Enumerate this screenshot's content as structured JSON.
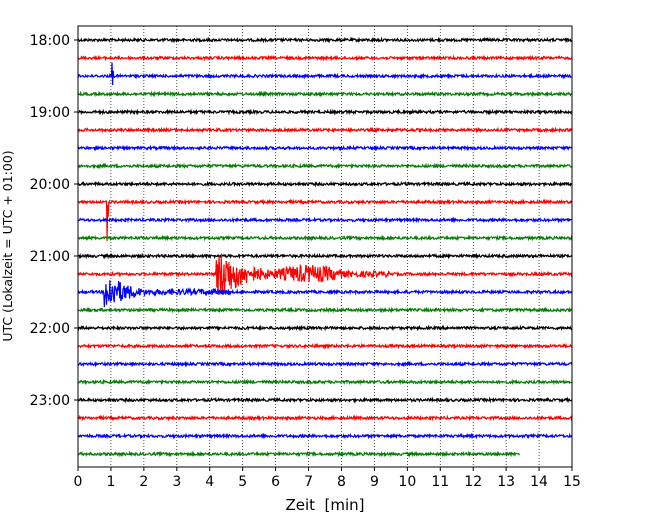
{
  "chart_data": {
    "type": "line",
    "title": "",
    "xlabel": "Zeit  [min]",
    "ylabel": "UTC (Lokalzeit = UTC + 01:00)",
    "xlim": [
      0,
      15
    ],
    "x_ticks": [
      0,
      1,
      2,
      3,
      4,
      5,
      6,
      7,
      8,
      9,
      10,
      11,
      12,
      13,
      14,
      15
    ],
    "x_tick_labels": [
      "0",
      "1",
      "2",
      "3",
      "4",
      "5",
      "6",
      "7",
      "8",
      "9",
      "10",
      "11",
      "12",
      "13",
      "14",
      "15"
    ],
    "y_range_minutes_utc": [
      "17:50",
      "24:00"
    ],
    "y_tick_labels": [
      "18:00",
      "19:00",
      "20:00",
      "21:00",
      "22:00",
      "23:00"
    ],
    "grid": "vertical dotted lines at each minute",
    "legend": "none",
    "trace_interval_minutes": 15,
    "trace_color_cycle": [
      "#000000",
      "#ff0000",
      "#0000ff",
      "#008000"
    ],
    "series": [
      {
        "start_utc": "18:00",
        "color": "black",
        "end_min": 15
      },
      {
        "start_utc": "18:15",
        "color": "red",
        "end_min": 15
      },
      {
        "start_utc": "18:30",
        "color": "blue",
        "end_min": 15
      },
      {
        "start_utc": "18:45",
        "color": "green",
        "end_min": 15
      },
      {
        "start_utc": "19:00",
        "color": "black",
        "end_min": 15
      },
      {
        "start_utc": "19:15",
        "color": "red",
        "end_min": 15
      },
      {
        "start_utc": "19:30",
        "color": "blue",
        "end_min": 15
      },
      {
        "start_utc": "19:45",
        "color": "green",
        "end_min": 15
      },
      {
        "start_utc": "20:00",
        "color": "black",
        "end_min": 15
      },
      {
        "start_utc": "20:15",
        "color": "red",
        "end_min": 15
      },
      {
        "start_utc": "20:30",
        "color": "blue",
        "end_min": 15
      },
      {
        "start_utc": "20:45",
        "color": "green",
        "end_min": 15
      },
      {
        "start_utc": "21:00",
        "color": "black",
        "end_min": 15
      },
      {
        "start_utc": "21:15",
        "color": "red",
        "end_min": 15
      },
      {
        "start_utc": "21:30",
        "color": "blue",
        "end_min": 15
      },
      {
        "start_utc": "21:45",
        "color": "green",
        "end_min": 15
      },
      {
        "start_utc": "22:00",
        "color": "black",
        "end_min": 15
      },
      {
        "start_utc": "22:15",
        "color": "red",
        "end_min": 15
      },
      {
        "start_utc": "22:30",
        "color": "blue",
        "end_min": 15
      },
      {
        "start_utc": "22:45",
        "color": "green",
        "end_min": 15
      },
      {
        "start_utc": "23:00",
        "color": "black",
        "end_min": 15
      },
      {
        "start_utc": "23:15",
        "color": "red",
        "end_min": 15
      },
      {
        "start_utc": "23:30",
        "color": "blue",
        "end_min": 15
      },
      {
        "start_utc": "23:45",
        "color": "green",
        "end_min": 13.4
      }
    ],
    "notable_events": [
      {
        "trace_utc": "21:15",
        "start_min": 4.2,
        "end_min": 9.5,
        "description": "large seismic wave train"
      },
      {
        "trace_utc": "21:30",
        "start_min": 0.8,
        "end_min": 4.6,
        "description": "large seismic wave train"
      },
      {
        "trace_utc": "20:15",
        "at_min": 0.9,
        "description": "spike"
      },
      {
        "trace_utc": "18:30",
        "at_min": 1.05,
        "description": "spike"
      }
    ]
  }
}
